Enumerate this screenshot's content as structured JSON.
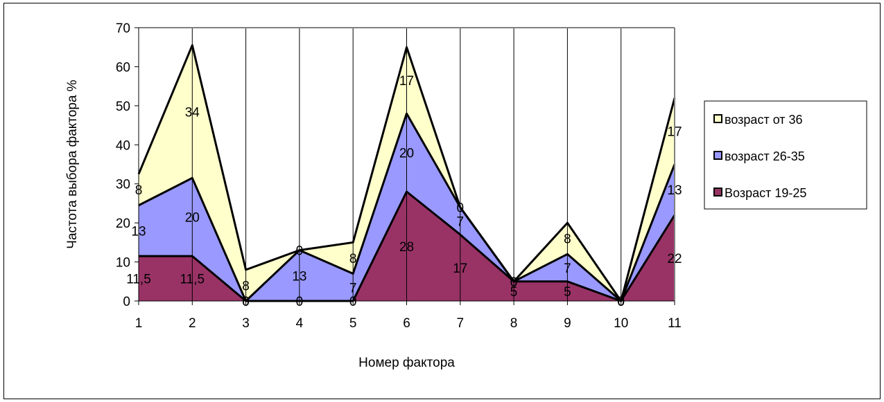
{
  "chart_data": {
    "type": "area",
    "stacked": true,
    "title": "",
    "xlabel": "Номер фактора",
    "ylabel": "Частота выбора фактора %",
    "ylim": [
      0,
      70
    ],
    "yticks": [
      0,
      10,
      20,
      30,
      40,
      50,
      60,
      70
    ],
    "categories": [
      "1",
      "2",
      "3",
      "4",
      "5",
      "6",
      "7",
      "8",
      "9",
      "10",
      "11"
    ],
    "grid": "vertical",
    "legend_position": "right",
    "series": [
      {
        "name": "Возраст 19-25",
        "color": "#993366",
        "values": [
          11.5,
          11.5,
          0,
          0,
          0,
          28,
          17,
          5,
          5,
          0,
          22
        ],
        "labels": [
          "11,5",
          "11,5",
          "0",
          "0",
          "0",
          "28",
          "17",
          "5",
          "5",
          "0",
          "22"
        ]
      },
      {
        "name": "возраст 26-35",
        "color": "#9999FF",
        "values": [
          13,
          20,
          0,
          13,
          7,
          20,
          7,
          0,
          7,
          0,
          13
        ],
        "labels": [
          "13",
          "20",
          "0",
          "13",
          "7",
          "20",
          "7",
          "0",
          "7",
          "0",
          "13"
        ]
      },
      {
        "name": "возраст от 36",
        "color": "#FFFFCC",
        "values": [
          8,
          34,
          8,
          0,
          8,
          17,
          0,
          0,
          8,
          0,
          17
        ],
        "labels": [
          "8",
          "34",
          "8",
          "0",
          "8",
          "17",
          "0",
          "0",
          "8",
          "0",
          "17"
        ]
      }
    ]
  }
}
